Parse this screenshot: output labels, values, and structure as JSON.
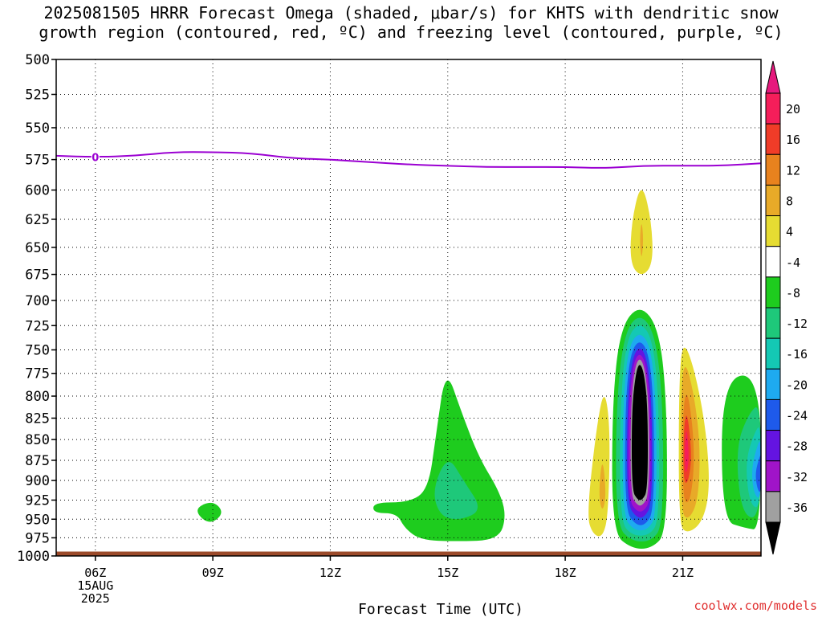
{
  "title": {
    "line1": "2025081505 HRRR Forecast Omega (shaded, μbar/s) for KHTS with dendritic snow",
    "line2": "growth region (contoured, red, ºC) and freezing level (contoured, purple, ºC)"
  },
  "watermark": "coolwx.com/models",
  "chart_data": {
    "type": "heatmap",
    "title": "2025081505 HRRR Forecast Omega (shaded, μbar/s) for KHTS with dendritic snow growth region (contoured, red, ºC) and freezing level (contoured, purple, ºC)",
    "xlabel": "Forecast Time (UTC)",
    "ylabel": "",
    "x_ticks": [
      {
        "hour": 6,
        "label": "06Z",
        "sub": [
          "15AUG",
          "2025"
        ]
      },
      {
        "hour": 9,
        "label": "09Z",
        "sub": []
      },
      {
        "hour": 12,
        "label": "12Z",
        "sub": []
      },
      {
        "hour": 15,
        "label": "15Z",
        "sub": []
      },
      {
        "hour": 18,
        "label": "18Z",
        "sub": []
      },
      {
        "hour": 21,
        "label": "21Z",
        "sub": []
      }
    ],
    "xlim": [
      5,
      23
    ],
    "y_ticks": [
      500,
      525,
      550,
      575,
      600,
      625,
      650,
      675,
      700,
      725,
      750,
      775,
      800,
      825,
      850,
      875,
      900,
      925,
      950,
      975,
      1000
    ],
    "ylim": [
      500,
      1000
    ],
    "y_scale": "log-pressure",
    "grid": true,
    "colorbar": {
      "labels": [
        "20",
        "16",
        "12",
        "8",
        "4",
        "-4",
        "-8",
        "-12",
        "-16",
        "-20",
        "-24",
        "-28",
        "-32",
        "-36"
      ],
      "colors": [
        "#f51e5a",
        "#f03c28",
        "#e8821e",
        "#e8aa28",
        "#e6dc32",
        "#ffffff",
        "#1ecc1e",
        "#1ec87a",
        "#14c8b4",
        "#1eaaf0",
        "#1e5aeb",
        "#6414e1",
        "#a014c8",
        "#a0a0a0"
      ],
      "top_arrow_color": "#e6197d",
      "bottom_arrow_color": "#000000"
    },
    "freezing_level": {
      "label": "0",
      "color": "#9b00d2",
      "points": [
        [
          5,
          572
        ],
        [
          6,
          573
        ],
        [
          7,
          572
        ],
        [
          8,
          569
        ],
        [
          9,
          569
        ],
        [
          10,
          570
        ],
        [
          11,
          574
        ],
        [
          12,
          575
        ],
        [
          13,
          577
        ],
        [
          14,
          579
        ],
        [
          15,
          580
        ],
        [
          16,
          581
        ],
        [
          17,
          581
        ],
        [
          18,
          581
        ],
        [
          19,
          582
        ],
        [
          20,
          580
        ],
        [
          21,
          580
        ],
        [
          22,
          580
        ],
        [
          23,
          578
        ]
      ]
    },
    "omega_regions": [
      {
        "value": -4.5,
        "color": "#1ecc1e",
        "points": [
          [
            8.5,
            937
          ],
          [
            9.0,
            925
          ],
          [
            9.3,
            942
          ],
          [
            8.9,
            958
          ]
        ]
      },
      {
        "value": -4.5,
        "color": "#1ecc1e",
        "points": [
          [
            13.1,
            928
          ],
          [
            14.0,
            928
          ],
          [
            14.5,
            912
          ],
          [
            14.7,
            845
          ],
          [
            14.95,
            768
          ],
          [
            15.35,
            818
          ],
          [
            15.8,
            872
          ],
          [
            16.3,
            912
          ],
          [
            16.5,
            945
          ],
          [
            16.3,
            978
          ],
          [
            15.2,
            980
          ],
          [
            14.3,
            978
          ],
          [
            13.9,
            962
          ],
          [
            13.7,
            942
          ],
          [
            13.1,
            942
          ]
        ]
      },
      {
        "value": -8.5,
        "color": "#1ec87a",
        "points": [
          [
            14.6,
            912
          ],
          [
            15.0,
            868
          ],
          [
            15.4,
            900
          ],
          [
            15.9,
            938
          ],
          [
            15.3,
            952
          ],
          [
            14.8,
            946
          ]
        ]
      },
      {
        "value": 4.5,
        "color": "#e6dc32",
        "points": [
          [
            18.55,
            945
          ],
          [
            18.8,
            835
          ],
          [
            19.0,
            790
          ],
          [
            19.15,
            835
          ],
          [
            19.1,
            945
          ],
          [
            18.95,
            975
          ],
          [
            18.7,
            970
          ]
        ]
      },
      {
        "value": 8.5,
        "color": "#e8aa28",
        "points": [
          [
            18.85,
            918
          ],
          [
            18.95,
            868
          ],
          [
            19.05,
            918
          ],
          [
            18.95,
            942
          ]
        ]
      },
      {
        "value": 4.5,
        "color": "#e6dc32",
        "points": [
          [
            19.7,
            625
          ],
          [
            19.95,
            592
          ],
          [
            20.2,
            625
          ],
          [
            20.25,
            665
          ],
          [
            19.95,
            678
          ],
          [
            19.65,
            665
          ]
        ]
      },
      {
        "value": 8.5,
        "color": "#e8aa28",
        "points": [
          [
            19.9,
            643
          ],
          [
            19.95,
            625
          ],
          [
            20.0,
            643
          ],
          [
            19.95,
            663
          ]
        ]
      },
      {
        "value": -4.5,
        "color": "#1ecc1e",
        "points": [
          [
            19.2,
            810
          ],
          [
            19.4,
            728
          ],
          [
            19.9,
            703
          ],
          [
            20.4,
            728
          ],
          [
            20.6,
            810
          ],
          [
            20.6,
            968
          ],
          [
            20.2,
            990
          ],
          [
            19.7,
            990
          ],
          [
            19.2,
            968
          ]
        ]
      },
      {
        "value": -8.5,
        "color": "#1ec87a",
        "points": [
          [
            19.3,
            810
          ],
          [
            19.5,
            733
          ],
          [
            19.9,
            712
          ],
          [
            20.3,
            733
          ],
          [
            20.5,
            810
          ],
          [
            20.5,
            958
          ],
          [
            20.2,
            980
          ],
          [
            19.7,
            980
          ],
          [
            19.3,
            958
          ]
        ]
      },
      {
        "value": -12.5,
        "color": "#14c8b4",
        "points": [
          [
            19.4,
            815
          ],
          [
            19.55,
            740
          ],
          [
            19.9,
            720
          ],
          [
            20.25,
            740
          ],
          [
            20.4,
            815
          ],
          [
            20.4,
            952
          ],
          [
            20.15,
            972
          ],
          [
            19.7,
            972
          ],
          [
            19.4,
            952
          ]
        ]
      },
      {
        "value": -16.5,
        "color": "#1eaaf0",
        "points": [
          [
            19.47,
            815
          ],
          [
            19.6,
            748
          ],
          [
            19.9,
            730
          ],
          [
            20.2,
            748
          ],
          [
            20.33,
            815
          ],
          [
            20.33,
            945
          ],
          [
            20.1,
            965
          ],
          [
            19.75,
            965
          ],
          [
            19.47,
            945
          ]
        ]
      },
      {
        "value": -20.5,
        "color": "#1e5aeb",
        "points": [
          [
            19.53,
            815
          ],
          [
            19.65,
            755
          ],
          [
            19.9,
            738
          ],
          [
            20.15,
            755
          ],
          [
            20.27,
            815
          ],
          [
            20.27,
            938
          ],
          [
            20.05,
            958
          ],
          [
            19.8,
            958
          ],
          [
            19.53,
            938
          ]
        ]
      },
      {
        "value": -24.5,
        "color": "#6414e1",
        "points": [
          [
            19.58,
            815
          ],
          [
            19.7,
            760
          ],
          [
            19.9,
            745
          ],
          [
            20.1,
            760
          ],
          [
            20.22,
            815
          ],
          [
            20.22,
            930
          ],
          [
            20.02,
            948
          ],
          [
            19.82,
            948
          ],
          [
            19.58,
            930
          ]
        ]
      },
      {
        "value": -28.5,
        "color": "#a014c8",
        "points": [
          [
            19.62,
            815
          ],
          [
            19.73,
            765
          ],
          [
            19.9,
            752
          ],
          [
            20.07,
            765
          ],
          [
            20.18,
            815
          ],
          [
            20.18,
            925
          ],
          [
            20.0,
            940
          ],
          [
            19.83,
            940
          ],
          [
            19.62,
            925
          ]
        ]
      },
      {
        "value": -32.5,
        "color": "#a0a0a0",
        "points": [
          [
            19.67,
            815
          ],
          [
            19.77,
            770
          ],
          [
            19.9,
            757
          ],
          [
            20.04,
            770
          ],
          [
            20.14,
            815
          ],
          [
            20.14,
            918
          ],
          [
            19.98,
            932
          ],
          [
            19.84,
            932
          ],
          [
            19.67,
            918
          ]
        ]
      },
      {
        "value": -36.5,
        "color": "#000000",
        "points": [
          [
            19.7,
            815
          ],
          [
            19.8,
            775
          ],
          [
            19.9,
            763
          ],
          [
            20.02,
            775
          ],
          [
            20.11,
            815
          ],
          [
            20.11,
            912
          ],
          [
            19.97,
            925
          ],
          [
            19.85,
            925
          ],
          [
            19.7,
            912
          ]
        ]
      },
      {
        "value": 4.5,
        "color": "#e6dc32",
        "points": [
          [
            20.9,
            790
          ],
          [
            21.0,
            738
          ],
          [
            21.3,
            770
          ],
          [
            21.6,
            838
          ],
          [
            21.7,
            912
          ],
          [
            21.5,
            955
          ],
          [
            21.1,
            970
          ],
          [
            20.9,
            955
          ]
        ]
      },
      {
        "value": 8.5,
        "color": "#e8aa28",
        "points": [
          [
            20.95,
            800
          ],
          [
            21.05,
            758
          ],
          [
            21.3,
            800
          ],
          [
            21.45,
            858
          ],
          [
            21.4,
            925
          ],
          [
            21.15,
            952
          ],
          [
            20.95,
            940
          ]
        ]
      },
      {
        "value": 12.5,
        "color": "#e8821e",
        "points": [
          [
            21.0,
            820
          ],
          [
            21.1,
            790
          ],
          [
            21.25,
            830
          ],
          [
            21.3,
            880
          ],
          [
            21.2,
            925
          ],
          [
            21.05,
            930
          ],
          [
            21.0,
            900
          ]
        ]
      },
      {
        "value": 16.5,
        "color": "#f03c28",
        "points": [
          [
            21.02,
            840
          ],
          [
            21.1,
            815
          ],
          [
            21.2,
            850
          ],
          [
            21.22,
            880
          ],
          [
            21.12,
            905
          ],
          [
            21.02,
            900
          ]
        ]
      },
      {
        "value": 20.5,
        "color": "#f51e5a",
        "points": [
          [
            21.05,
            855
          ],
          [
            21.1,
            835
          ],
          [
            21.15,
            860
          ],
          [
            21.15,
            880
          ],
          [
            21.08,
            892
          ],
          [
            21.05,
            880
          ]
        ]
      },
      {
        "value": -4.5,
        "color": "#1ecc1e",
        "points": [
          [
            22.0,
            780
          ],
          [
            23.0,
            775
          ],
          [
            23.0,
            965
          ],
          [
            22.6,
            962
          ],
          [
            22.0,
            952
          ]
        ]
      },
      {
        "value": -8.5,
        "color": "#1ec87a",
        "points": [
          [
            22.35,
            860
          ],
          [
            22.7,
            818
          ],
          [
            23.0,
            808
          ],
          [
            23.0,
            950
          ],
          [
            22.5,
            945
          ]
        ]
      },
      {
        "value": -12.5,
        "color": "#14c8b4",
        "points": [
          [
            22.6,
            875
          ],
          [
            22.85,
            840
          ],
          [
            23.0,
            832
          ],
          [
            23.0,
            938
          ],
          [
            22.7,
            930
          ]
        ]
      },
      {
        "value": -16.5,
        "color": "#1eaaf0",
        "points": [
          [
            22.75,
            885
          ],
          [
            22.92,
            855
          ],
          [
            23.0,
            850
          ],
          [
            23.0,
            925
          ],
          [
            22.82,
            918
          ]
        ]
      },
      {
        "value": -20.5,
        "color": "#1e5aeb",
        "points": [
          [
            22.85,
            890
          ],
          [
            22.97,
            870
          ],
          [
            23.0,
            868
          ],
          [
            23.0,
            918
          ],
          [
            22.9,
            910
          ]
        ]
      }
    ],
    "surface": {
      "color": "#9b4a2a",
      "pressure": 995
    }
  }
}
